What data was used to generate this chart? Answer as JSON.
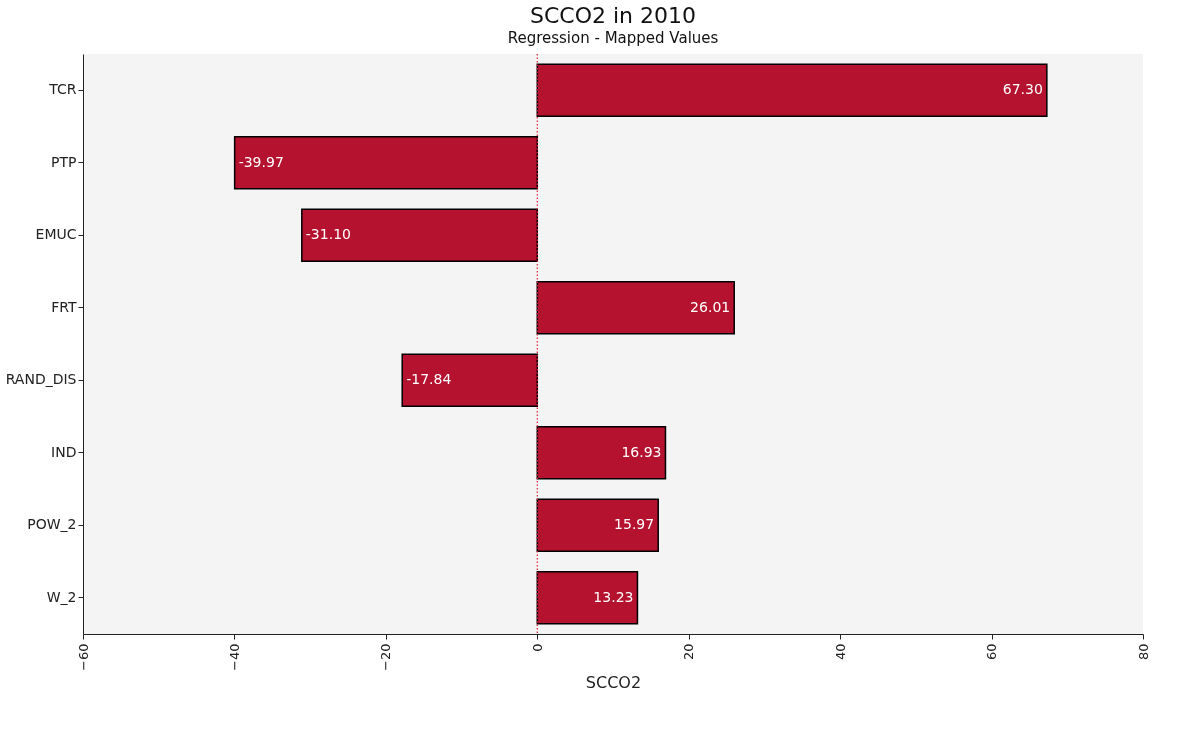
{
  "chart_data": {
    "type": "bar",
    "orientation": "horizontal",
    "title": "SCCO2 in 2010",
    "subtitle": "Regression - Mapped Values",
    "xlabel": "SCCO2",
    "categories": [
      "TCR",
      "PTP",
      "EMUC",
      "FRT",
      "RAND_DIS",
      "IND",
      "POW_2",
      "W_2"
    ],
    "values": [
      67.3,
      -39.97,
      -31.1,
      26.01,
      -17.84,
      16.93,
      15.97,
      13.23
    ],
    "value_labels": [
      "67.30",
      "-39.97",
      "-31.10",
      "26.01",
      "-17.84",
      "16.93",
      "15.97",
      "13.23"
    ],
    "color": "#b5122f",
    "xlim": [
      -60,
      80
    ],
    "xticks": [
      -60,
      -40,
      -20,
      0,
      20,
      40,
      60,
      80
    ],
    "ref_lines": [
      {
        "axis": "x",
        "value": 0,
        "color": "#e0203a",
        "line_style": "dotted"
      }
    ],
    "grid": false
  }
}
